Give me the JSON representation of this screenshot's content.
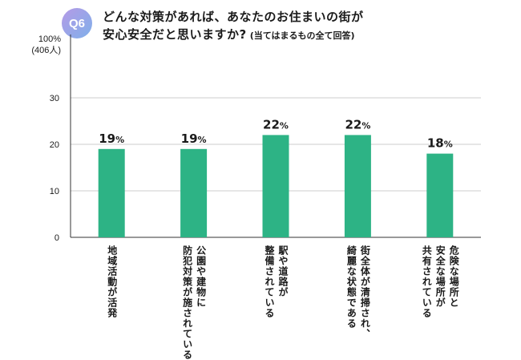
{
  "question": {
    "badge": "Q6",
    "title_line1": "どんな対策があれば、あなたのお住まいの街が",
    "title_line2": "安心安全だと思いますか?",
    "title_note": "(当てはまるもの全て回答)"
  },
  "colors": {
    "bar": "#2db385",
    "axis": "#333333",
    "grid": "#cccccc"
  },
  "chart_data": {
    "type": "bar",
    "ylabel_top": "100%",
    "ylabel_n": "(406人)",
    "ylim": [
      0,
      35
    ],
    "yticks": [
      0,
      10,
      20,
      30
    ],
    "ytick_labels": [
      "0",
      "10",
      "20",
      "30"
    ],
    "grid": true,
    "categories": [
      [
        "地域活動が活発"
      ],
      [
        "公園や建物に",
        "防犯対策が施されている"
      ],
      [
        "駅や道路が",
        "整備されている"
      ],
      [
        "街全体が清掃され、",
        "綺麗な状態である"
      ],
      [
        "危険な場所と",
        "安全な場所が",
        "共有されている"
      ]
    ],
    "values": [
      19,
      19,
      22,
      22,
      18
    ],
    "value_labels": [
      "19",
      "19",
      "22",
      "22",
      "18"
    ],
    "unit": "%"
  }
}
